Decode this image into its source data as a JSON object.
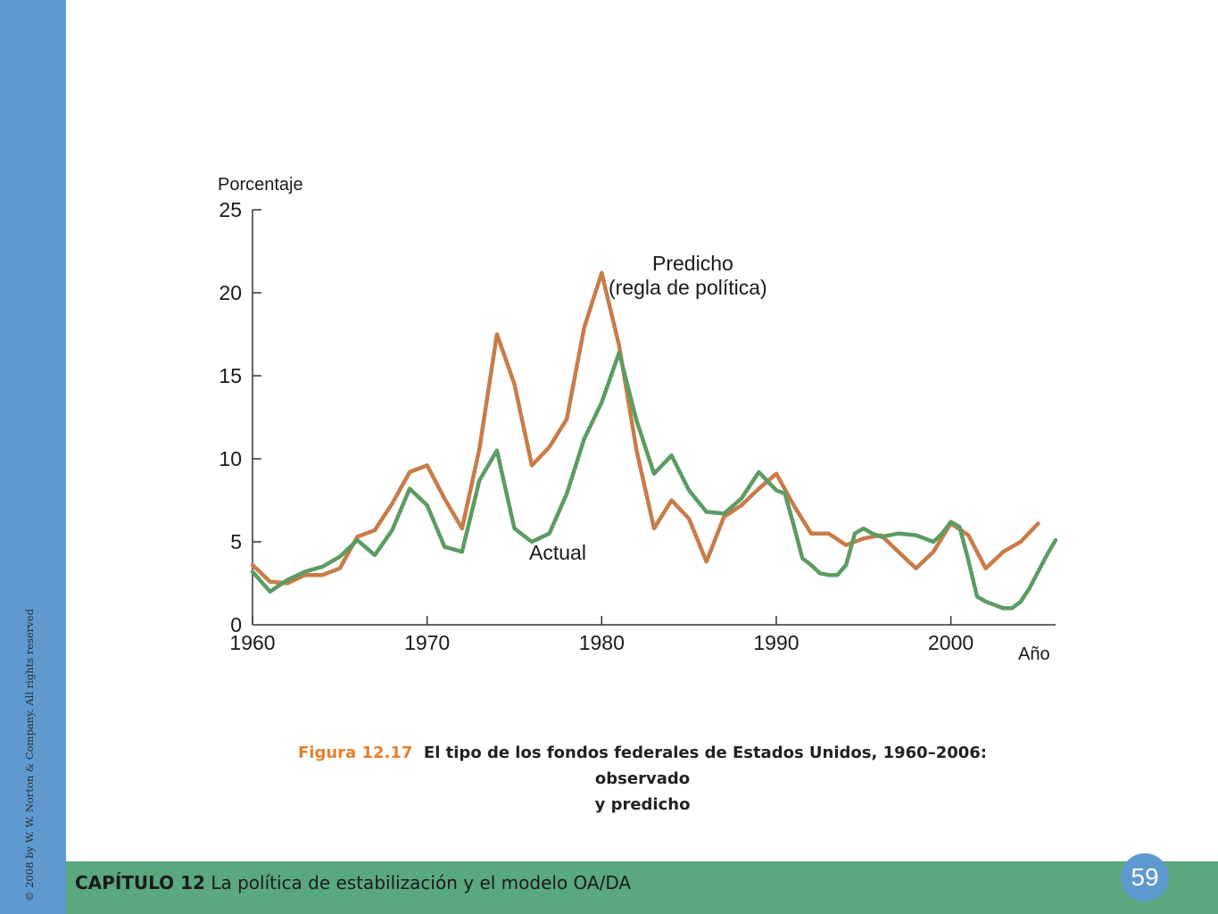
{
  "copyright": "© 2008 by W. W. Norton & Company. All rights reserved",
  "chapter": {
    "label": "CAPÍTULO 12",
    "title": "La política de estabilización y el modelo OA/DA"
  },
  "page_number": "59",
  "colors": {
    "sidebar": "#5e9ad0",
    "footer": "#5aa87d",
    "predicted": "#c97b48",
    "actual": "#5b9c62",
    "figure_label": "#e5802f"
  },
  "caption": {
    "figure_label": "Figura 12.17",
    "text_line1": "El tipo de los fondos federales de Estados Unidos, 1960–2006: observado",
    "text_line2": "y predicho"
  },
  "chart_data": {
    "type": "line",
    "ylabel": "Porcentaje",
    "xlabel": "Año",
    "xlim": [
      1960,
      2006
    ],
    "ylim": [
      0,
      25
    ],
    "x_ticks": [
      "1960",
      "1970",
      "1980",
      "1990",
      "2000"
    ],
    "y_ticks": [
      "0",
      "5",
      "10",
      "15",
      "20",
      "25"
    ],
    "grid": false,
    "legend": "inline labels",
    "annotations": {
      "predicted_line1": "Predicho",
      "predicted_line2": "(regla de política)",
      "actual": "Actual"
    },
    "series": [
      {
        "name": "Predicho (regla de política)",
        "x": [
          1960,
          1961,
          1962,
          1963,
          1964,
          1965,
          1966,
          1967,
          1968,
          1969,
          1970,
          1971,
          1972,
          1973,
          1974,
          1975,
          1976,
          1977,
          1978,
          1979,
          1980,
          1981,
          1982,
          1983,
          1984,
          1985,
          1986,
          1987,
          1988,
          1989,
          1990,
          1991,
          1992,
          1993,
          1994,
          1995,
          1996,
          1997,
          1998,
          1999,
          2000,
          2001,
          2002,
          2003,
          2004,
          2005
        ],
        "y": [
          3.6,
          2.6,
          2.5,
          3.0,
          3.0,
          3.4,
          5.3,
          5.7,
          7.3,
          9.2,
          9.6,
          7.6,
          5.8,
          10.6,
          17.5,
          14.5,
          9.6,
          10.7,
          12.4,
          17.9,
          21.2,
          16.8,
          10.5,
          5.8,
          7.5,
          6.4,
          3.8,
          6.5,
          7.2,
          8.2,
          9.1,
          7.2,
          5.5,
          5.5,
          4.8,
          5.2,
          5.4,
          4.4,
          3.4,
          4.4,
          6.1,
          5.4,
          3.4,
          4.4,
          5.0,
          6.1
        ]
      },
      {
        "name": "Actual",
        "x": [
          1960,
          1961,
          1962,
          1963,
          1964,
          1965,
          1966,
          1967,
          1968,
          1969,
          1970,
          1971,
          1972,
          1973,
          1974,
          1975,
          1976,
          1977,
          1978,
          1979,
          1980,
          1981,
          1982,
          1983,
          1984,
          1985,
          1986,
          1987,
          1988,
          1989,
          1990,
          1990.5,
          1991,
          1991.5,
          1992,
          1992.5,
          1993,
          1993.5,
          1994,
          1994.5,
          1995,
          1995.5,
          1996,
          1997,
          1998,
          1999,
          1999.5,
          2000,
          2000.5,
          2001,
          2001.5,
          2002,
          2002.5,
          2003,
          2003.5,
          2004,
          2004.5,
          2005,
          2005.5,
          2006
        ],
        "y": [
          3.2,
          2.0,
          2.7,
          3.2,
          3.5,
          4.1,
          5.1,
          4.2,
          5.7,
          8.2,
          7.2,
          4.7,
          4.4,
          8.7,
          10.5,
          5.8,
          5.0,
          5.5,
          7.9,
          11.2,
          13.4,
          16.4,
          12.3,
          9.1,
          10.2,
          8.1,
          6.8,
          6.7,
          7.6,
          9.2,
          8.1,
          7.9,
          6.0,
          4.0,
          3.6,
          3.1,
          3.0,
          3.0,
          3.6,
          5.5,
          5.8,
          5.5,
          5.3,
          5.5,
          5.4,
          5.0,
          5.5,
          6.2,
          5.9,
          3.9,
          1.7,
          1.4,
          1.2,
          1.0,
          1.0,
          1.4,
          2.2,
          3.2,
          4.2,
          5.1
        ]
      }
    ]
  }
}
